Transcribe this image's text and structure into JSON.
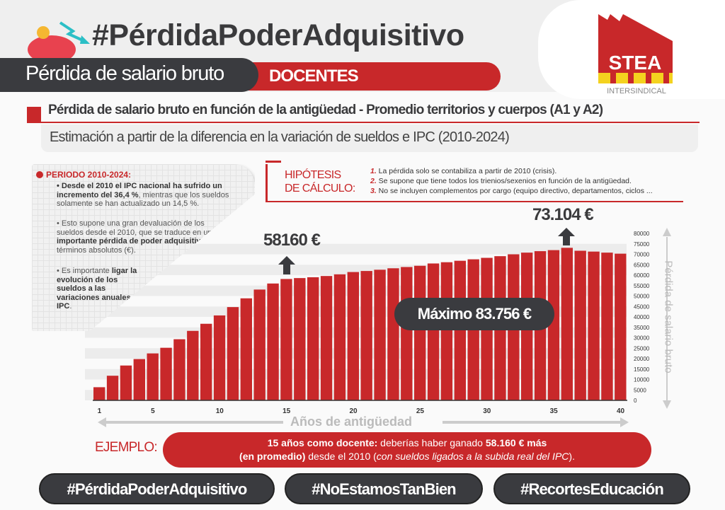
{
  "header": {
    "title": "#PérdidaPoderAdquisitivo",
    "subtitle_dark": "Pérdida de salario bruto",
    "subtitle_red": "DOCENTES",
    "logo_text": "STEA",
    "logo_sub": "INTERSINDICAL"
  },
  "section": {
    "heading": "Pérdida de salario bruto en función de la antigüedad - Promedio territorios y cuerpos (A1 y A2)",
    "subheading": "Estimación  a partir de la diferencia en la variación de sueldos e IPC (2010-2024)"
  },
  "info": {
    "heading": "PERIODO 2010-2024:",
    "p1_bold": "• Desde el 2010 el IPC nacional ha sufrido un incremento del 36,4 %",
    "p1_rest": ", mientras que los sueldos solamente se han actualizado un 14,5 %.",
    "p2_a": "• Esto supone una gran devaluación de los sueldos desde el 2010, que se traduce en una ",
    "p2_bold": "importante pérdida de poder adquisitivo",
    "p2_rest": " en términos absolutos (€).",
    "p3_a": "• Es importante ",
    "p3_bold": "ligar la evolución de los sueldos a las variaciones anuales del IPC",
    "p3_rest": "."
  },
  "hypotheses": {
    "title1": "HIPÓTESIS",
    "title2": "DE CÁLCULO:",
    "items": [
      {
        "n": "1.",
        "text": " La pérdida solo se contabiliza a partir de 2010 (crisis)."
      },
      {
        "n": "2.",
        "text": " Se supone que tiene todos los trienios/sexenios en función de la antigüedad."
      },
      {
        "n": "3.",
        "text": " No se incluyen complementos por cargo (equipo directivo, departamentos, ciclos ..."
      }
    ]
  },
  "annotations": {
    "a15": "58160 €",
    "a36": "73.104 €",
    "max": "Máximo 83.756 €"
  },
  "example": {
    "label": "EJEMPLO:",
    "bold1": "15 años como docente:",
    "t1": " deberías haber ganado ",
    "bold2": "58.160 € más",
    "bold3": "(en promedio)",
    "t2": " desde el 2010 (",
    "ital": "con sueldos ligados a la subida real del IPC",
    "t3": ")."
  },
  "tags": [
    "#PérdidaPoderAdquisitivo",
    "#NoEstamosTanBien",
    "#RecortesEducación"
  ],
  "chart_data": {
    "type": "bar",
    "title": "Pérdida de salario bruto en función de la antigüedad",
    "xlabel": "Años de antigüedad",
    "ylabel": "Pérdida de salario bruto",
    "ylim": [
      0,
      80000
    ],
    "yticks": [
      0,
      5000,
      10000,
      15000,
      20000,
      25000,
      30000,
      35000,
      40000,
      45000,
      50000,
      55000,
      60000,
      65000,
      70000,
      75000,
      80000
    ],
    "xticks": [
      1,
      5,
      10,
      15,
      20,
      25,
      30,
      35,
      40
    ],
    "x": [
      1,
      2,
      3,
      4,
      5,
      6,
      7,
      8,
      9,
      10,
      11,
      12,
      13,
      14,
      15,
      16,
      17,
      18,
      19,
      20,
      21,
      22,
      23,
      24,
      25,
      26,
      27,
      28,
      29,
      30,
      31,
      32,
      33,
      34,
      35,
      36,
      37,
      38,
      39,
      40
    ],
    "values": [
      6300,
      11800,
      16700,
      19800,
      22500,
      25200,
      29300,
      33300,
      36700,
      40700,
      44700,
      48900,
      53100,
      56000,
      58160,
      58600,
      59000,
      59600,
      60400,
      61500,
      62000,
      62600,
      63300,
      63900,
      64500,
      65600,
      66200,
      66900,
      67600,
      68300,
      69100,
      70000,
      70800,
      71500,
      72000,
      73104,
      71700,
      71300,
      70800,
      70300
    ],
    "color": "#c8282a"
  }
}
